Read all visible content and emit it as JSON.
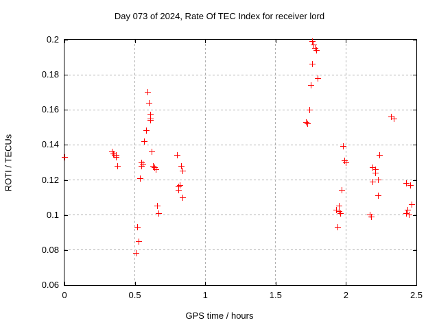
{
  "title": "Day 073 of 2024, Rate Of TEC Index for receiver lord",
  "chart_data": {
    "type": "scatter",
    "title": "Day 073 of 2024, Rate Of TEC Index for receiver lord",
    "xlabel": "GPS time / hours",
    "ylabel": "ROTI / TECUs",
    "xlim": [
      0,
      2.5
    ],
    "ylim": [
      0.06,
      0.2
    ],
    "grid": true,
    "legend": "none",
    "marker": "plus",
    "marker_color": "#ff0000",
    "grid_color": "#b0b0b0",
    "axis_color": "#000000",
    "xticks": [
      {
        "value": 0,
        "label": "0"
      },
      {
        "value": 0.5,
        "label": "0.5"
      },
      {
        "value": 1,
        "label": "1"
      },
      {
        "value": 1.5,
        "label": "1.5"
      },
      {
        "value": 2,
        "label": "2"
      },
      {
        "value": 2.5,
        "label": "2.5"
      }
    ],
    "yticks": [
      {
        "value": 0.06,
        "label": "0.06"
      },
      {
        "value": 0.08,
        "label": "0.08"
      },
      {
        "value": 0.1,
        "label": "0.1"
      },
      {
        "value": 0.12,
        "label": "0.12"
      },
      {
        "value": 0.14,
        "label": "0.14"
      },
      {
        "value": 0.16,
        "label": "0.16"
      },
      {
        "value": 0.18,
        "label": "0.18"
      },
      {
        "value": 0.2,
        "label": "0.2"
      }
    ],
    "series": [
      {
        "name": "ROTI",
        "points": [
          [
            0.0,
            0.133
          ],
          [
            0.34,
            0.136
          ],
          [
            0.35,
            0.135
          ],
          [
            0.36,
            0.134
          ],
          [
            0.37,
            0.134
          ],
          [
            0.37,
            0.133
          ],
          [
            0.38,
            0.128
          ],
          [
            0.51,
            0.078
          ],
          [
            0.52,
            0.093
          ],
          [
            0.53,
            0.085
          ],
          [
            0.54,
            0.121
          ],
          [
            0.55,
            0.13
          ],
          [
            0.56,
            0.129
          ],
          [
            0.55,
            0.128
          ],
          [
            0.57,
            0.142
          ],
          [
            0.58,
            0.148
          ],
          [
            0.59,
            0.17
          ],
          [
            0.6,
            0.164
          ],
          [
            0.61,
            0.157
          ],
          [
            0.61,
            0.155
          ],
          [
            0.61,
            0.154
          ],
          [
            0.62,
            0.136
          ],
          [
            0.63,
            0.128
          ],
          [
            0.64,
            0.127
          ],
          [
            0.65,
            0.126
          ],
          [
            0.66,
            0.105
          ],
          [
            0.67,
            0.101
          ],
          [
            0.8,
            0.134
          ],
          [
            0.83,
            0.128
          ],
          [
            0.84,
            0.125
          ],
          [
            0.82,
            0.117
          ],
          [
            0.81,
            0.116
          ],
          [
            0.81,
            0.114
          ],
          [
            0.84,
            0.11
          ],
          [
            1.72,
            0.153
          ],
          [
            1.73,
            0.152
          ],
          [
            1.74,
            0.16
          ],
          [
            1.75,
            0.174
          ],
          [
            1.76,
            0.186
          ],
          [
            1.76,
            0.199
          ],
          [
            1.77,
            0.197
          ],
          [
            1.78,
            0.195
          ],
          [
            1.79,
            0.194
          ],
          [
            1.8,
            0.178
          ],
          [
            1.93,
            0.103
          ],
          [
            1.94,
            0.093
          ],
          [
            1.95,
            0.105
          ],
          [
            1.95,
            0.102
          ],
          [
            1.96,
            0.101
          ],
          [
            1.97,
            0.114
          ],
          [
            1.98,
            0.139
          ],
          [
            1.99,
            0.131
          ],
          [
            2.0,
            0.13
          ],
          [
            2.17,
            0.1
          ],
          [
            2.18,
            0.099
          ],
          [
            2.19,
            0.127
          ],
          [
            2.21,
            0.126
          ],
          [
            2.19,
            0.119
          ],
          [
            2.21,
            0.124
          ],
          [
            2.23,
            0.12
          ],
          [
            2.23,
            0.111
          ],
          [
            2.24,
            0.134
          ],
          [
            2.32,
            0.156
          ],
          [
            2.34,
            0.155
          ],
          [
            2.43,
            0.118
          ],
          [
            2.46,
            0.117
          ],
          [
            2.43,
            0.101
          ],
          [
            2.44,
            0.103
          ],
          [
            2.45,
            0.1
          ],
          [
            2.47,
            0.106
          ]
        ]
      }
    ]
  }
}
